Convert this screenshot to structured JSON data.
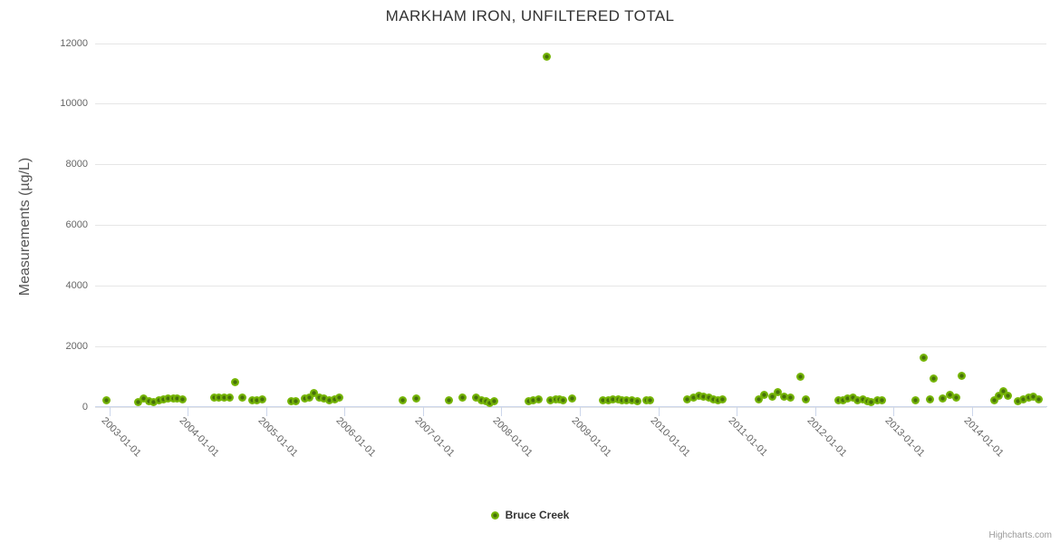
{
  "credits": "Highcharts.com",
  "colors": {
    "series_green": "#74b405",
    "marker_core": "#46700a",
    "marker_rim": "#96c832",
    "gridline": "#e6e6e6",
    "axis_line": "#ccd6eb",
    "title_text": "#333333",
    "axis_label_text": "#666666",
    "credits_text": "#999999"
  },
  "chart_data": {
    "type": "scatter",
    "title": "MARKHAM IRON, UNFILTERED TOTAL",
    "xlabel": "",
    "ylabel": "Measurements (µg/L)",
    "ylim": [
      0,
      12000
    ],
    "y_ticks": [
      0,
      2000,
      4000,
      6000,
      8000,
      10000,
      12000
    ],
    "xlim": [
      2002.82,
      2014.95
    ],
    "x_tick_values": [
      2003,
      2004,
      2005,
      2006,
      2007,
      2008,
      2009,
      2010,
      2011,
      2012,
      2013,
      2014
    ],
    "x_tick_labels": [
      "2003-01-01",
      "2004-01-01",
      "2005-01-01",
      "2006-01-01",
      "2007-01-01",
      "2008-01-01",
      "2009-01-01",
      "2010-01-01",
      "2011-01-01",
      "2012-01-01",
      "2013-01-01",
      "2014-01-01"
    ],
    "grid": "horizontal-only",
    "legend_position": "bottom-center",
    "series": [
      {
        "name": "Bruce Creek",
        "color": "#74b405",
        "points": [
          [
            2002.97,
            210
          ],
          [
            2003.37,
            160
          ],
          [
            2003.44,
            270
          ],
          [
            2003.51,
            180
          ],
          [
            2003.57,
            150
          ],
          [
            2003.64,
            210
          ],
          [
            2003.69,
            240
          ],
          [
            2003.75,
            260
          ],
          [
            2003.82,
            260
          ],
          [
            2003.87,
            260
          ],
          [
            2003.94,
            250
          ],
          [
            2004.34,
            290
          ],
          [
            2004.4,
            310
          ],
          [
            2004.47,
            290
          ],
          [
            2004.53,
            300
          ],
          [
            2004.6,
            820
          ],
          [
            2004.7,
            290
          ],
          [
            2004.83,
            210
          ],
          [
            2004.88,
            200
          ],
          [
            2004.95,
            230
          ],
          [
            2005.32,
            180
          ],
          [
            2005.38,
            190
          ],
          [
            2005.5,
            260
          ],
          [
            2005.55,
            290
          ],
          [
            2005.61,
            440
          ],
          [
            2005.68,
            310
          ],
          [
            2005.74,
            270
          ],
          [
            2005.81,
            210
          ],
          [
            2005.87,
            240
          ],
          [
            2005.93,
            300
          ],
          [
            2006.74,
            210
          ],
          [
            2006.91,
            260
          ],
          [
            2007.33,
            220
          ],
          [
            2007.5,
            290
          ],
          [
            2007.68,
            290
          ],
          [
            2007.75,
            220
          ],
          [
            2007.8,
            170
          ],
          [
            2007.85,
            120
          ],
          [
            2007.91,
            190
          ],
          [
            2008.35,
            170
          ],
          [
            2008.4,
            210
          ],
          [
            2008.47,
            230
          ],
          [
            2008.58,
            11560
          ],
          [
            2008.63,
            210
          ],
          [
            2008.69,
            250
          ],
          [
            2008.74,
            240
          ],
          [
            2008.79,
            210
          ],
          [
            2008.9,
            280
          ],
          [
            2009.3,
            210
          ],
          [
            2009.36,
            210
          ],
          [
            2009.42,
            240
          ],
          [
            2009.49,
            250
          ],
          [
            2009.54,
            200
          ],
          [
            2009.6,
            210
          ],
          [
            2009.66,
            200
          ],
          [
            2009.73,
            180
          ],
          [
            2009.85,
            200
          ],
          [
            2009.9,
            200
          ],
          [
            2010.37,
            240
          ],
          [
            2010.45,
            300
          ],
          [
            2010.52,
            370
          ],
          [
            2010.58,
            330
          ],
          [
            2010.65,
            300
          ],
          [
            2010.7,
            250
          ],
          [
            2010.76,
            220
          ],
          [
            2010.82,
            230
          ],
          [
            2011.28,
            240
          ],
          [
            2011.35,
            390
          ],
          [
            2011.45,
            320
          ],
          [
            2011.52,
            470
          ],
          [
            2011.61,
            340
          ],
          [
            2011.69,
            300
          ],
          [
            2011.81,
            990
          ],
          [
            2011.88,
            240
          ],
          [
            2012.3,
            210
          ],
          [
            2012.36,
            220
          ],
          [
            2012.42,
            260
          ],
          [
            2012.48,
            290
          ],
          [
            2012.54,
            220
          ],
          [
            2012.61,
            240
          ],
          [
            2012.67,
            180
          ],
          [
            2012.72,
            160
          ],
          [
            2012.79,
            200
          ],
          [
            2012.85,
            200
          ],
          [
            2013.28,
            200
          ],
          [
            2013.39,
            1620
          ],
          [
            2013.46,
            250
          ],
          [
            2013.51,
            920
          ],
          [
            2013.63,
            270
          ],
          [
            2013.72,
            380
          ],
          [
            2013.8,
            290
          ],
          [
            2013.87,
            1020
          ],
          [
            2014.29,
            220
          ],
          [
            2014.34,
            370
          ],
          [
            2014.4,
            500
          ],
          [
            2014.46,
            370
          ],
          [
            2014.59,
            190
          ],
          [
            2014.65,
            250
          ],
          [
            2014.72,
            310
          ],
          [
            2014.78,
            340
          ],
          [
            2014.85,
            250
          ]
        ]
      }
    ]
  }
}
